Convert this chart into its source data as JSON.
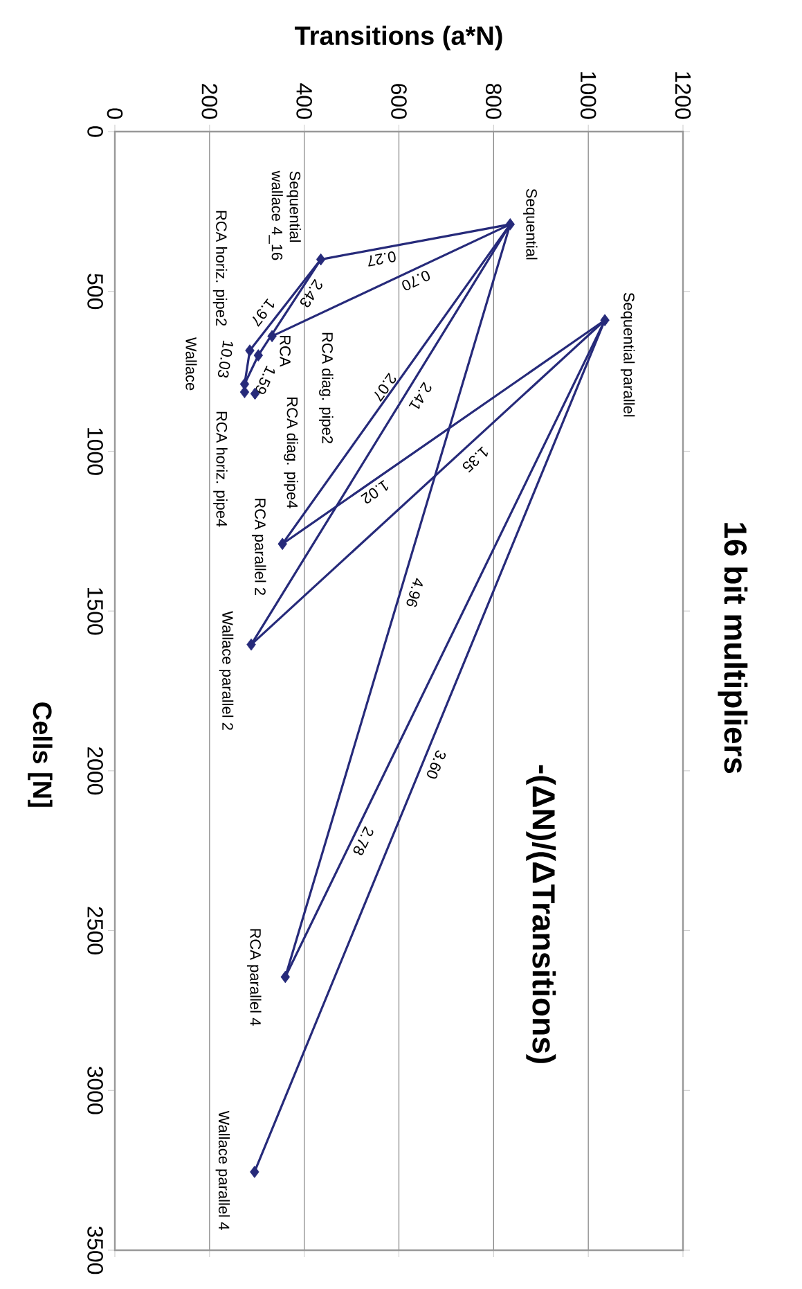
{
  "chart_data": {
    "type": "line",
    "title": "16 bit multipliers",
    "subtitle": "-(ΔN)/(ΔTransitions)",
    "xlabel": "Transitions (a*N)",
    "ylabel": "Cells [N]",
    "xlim": [
      0,
      1200
    ],
    "xticks": [
      0,
      200,
      400,
      600,
      800,
      1000,
      1200
    ],
    "ylim": [
      3500,
      0
    ],
    "yticks": [
      0,
      500,
      1000,
      1500,
      2000,
      2500,
      3000,
      3500
    ],
    "grid": "x",
    "series": [
      {
        "type": "scatter",
        "marker": "diamond",
        "color": "#262a7a",
        "x": [
          835,
          1035,
          435,
          332,
          303,
          285,
          274,
          274,
          296,
          354,
          288,
          360,
          295
        ],
        "values": [
          290,
          590,
          400,
          640,
          700,
          685,
          790,
          815,
          820,
          1290,
          1605,
          2645,
          3255
        ]
      },
      {
        "color": "#262a7a",
        "x": [
          835,
          435
        ],
        "values": [
          290,
          400
        ]
      },
      {
        "color": "#262a7a",
        "x": [
          835,
          332
        ],
        "values": [
          290,
          640
        ]
      },
      {
        "color": "#262a7a",
        "x": [
          435,
          303
        ],
        "values": [
          400,
          700
        ]
      },
      {
        "color": "#262a7a",
        "x": [
          435,
          285
        ],
        "values": [
          400,
          685
        ]
      },
      {
        "color": "#262a7a",
        "x": [
          285,
          274
        ],
        "values": [
          685,
          790
        ]
      },
      {
        "color": "#262a7a",
        "x": [
          303,
          274
        ],
        "values": [
          700,
          790
        ]
      },
      {
        "color": "#262a7a",
        "x": [
          835,
          354
        ],
        "values": [
          290,
          1290
        ]
      },
      {
        "color": "#262a7a",
        "x": [
          835,
          288
        ],
        "values": [
          290,
          1605
        ]
      },
      {
        "color": "#262a7a",
        "x": [
          1035,
          288
        ],
        "values": [
          590,
          1605
        ]
      },
      {
        "color": "#262a7a",
        "x": [
          1035,
          354
        ],
        "values": [
          590,
          1290
        ]
      },
      {
        "color": "#262a7a",
        "x": [
          835,
          360
        ],
        "values": [
          290,
          2645
        ]
      },
      {
        "color": "#262a7a",
        "x": [
          1035,
          295
        ],
        "values": [
          590,
          3255
        ]
      },
      {
        "color": "#262a7a",
        "x": [
          1035,
          360
        ],
        "values": [
          590,
          2645
        ]
      }
    ],
    "annotations": [
      "Sequential",
      "Sequential parallel",
      "Sequential wallace 4_16",
      "RCA",
      "RCA diag. pipe2",
      "RCA horiz. pipe2",
      "Wallace",
      "RCA horiz. pipe4",
      "RCA diag. pipe4",
      "RCA parallel 2",
      "Wallace parallel 2",
      "RCA parallel 4",
      "Wallace parallel 4",
      "0.27",
      "0.70",
      "2.43",
      "1.97",
      "10.03",
      "1.59",
      "2.07",
      "2.41",
      "1.35",
      "1.02",
      "4.96",
      "3.60",
      "2.78"
    ]
  }
}
